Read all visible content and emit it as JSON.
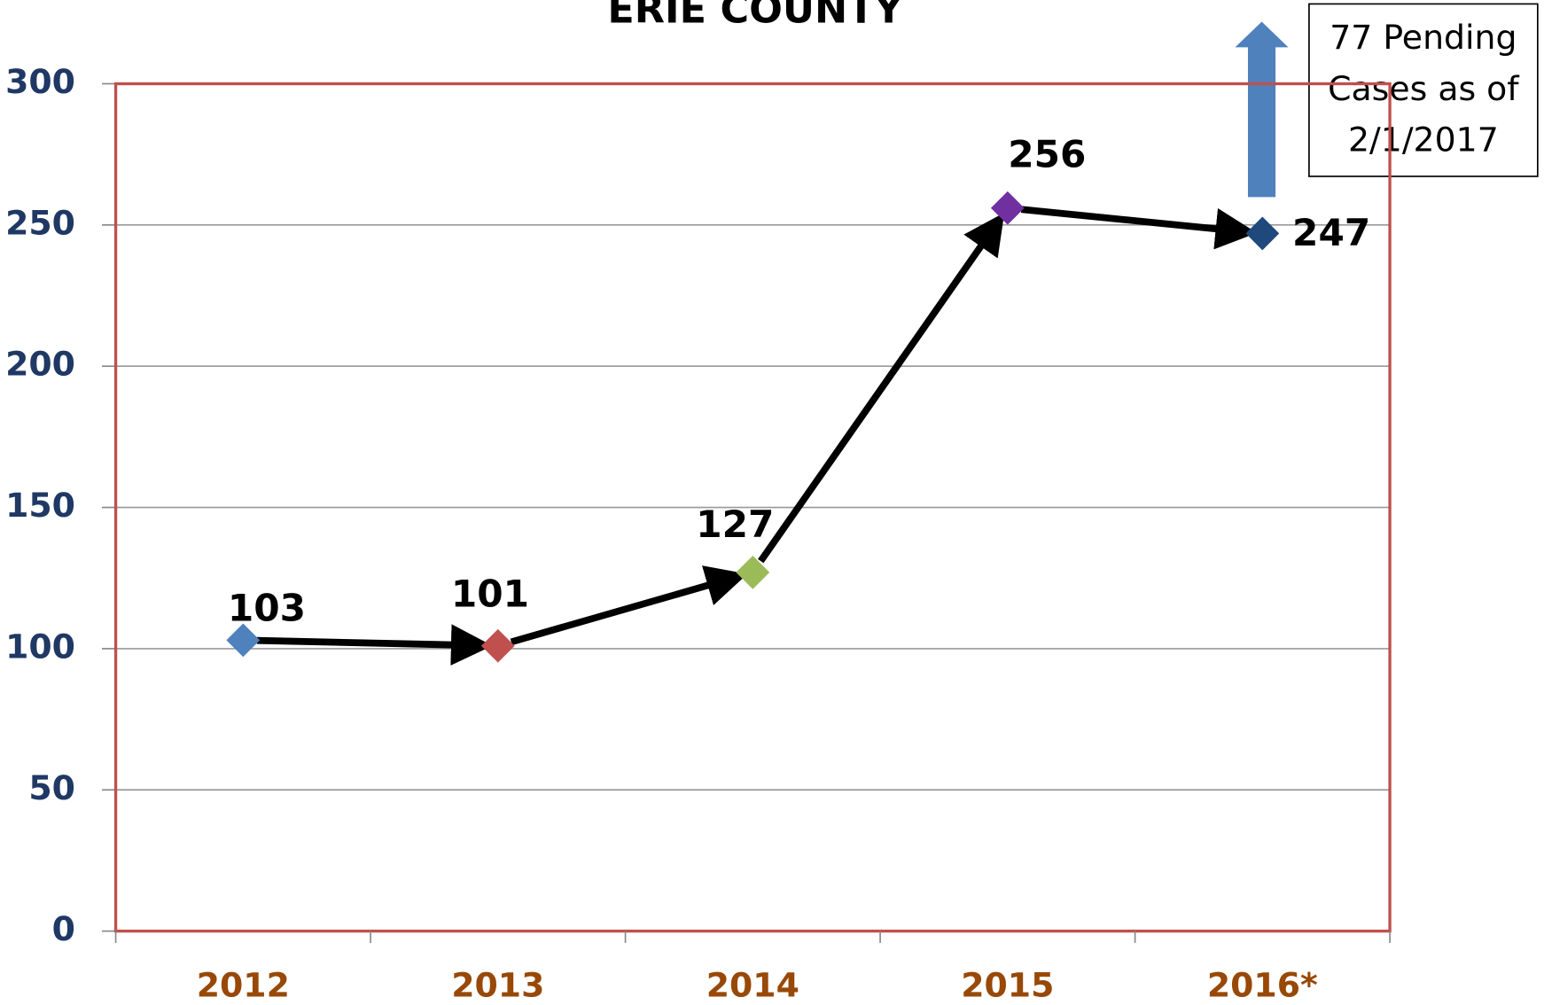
{
  "chart_data": {
    "type": "line",
    "title": "ERIE COUNTY",
    "categories": [
      "2012",
      "2013",
      "2014",
      "2015",
      "2016*"
    ],
    "values": [
      103,
      101,
      127,
      256,
      247
    ],
    "point_colors": [
      "#4f81bd",
      "#c0504d",
      "#9bbb59",
      "#7030a0",
      "#1f497d"
    ],
    "ylim": [
      0,
      300
    ],
    "yticks": [
      0,
      50,
      100,
      150,
      200,
      250,
      300
    ],
    "grid": true,
    "annotation": [
      "77 Pending",
      "Cases as of",
      "2/1/2017"
    ]
  }
}
